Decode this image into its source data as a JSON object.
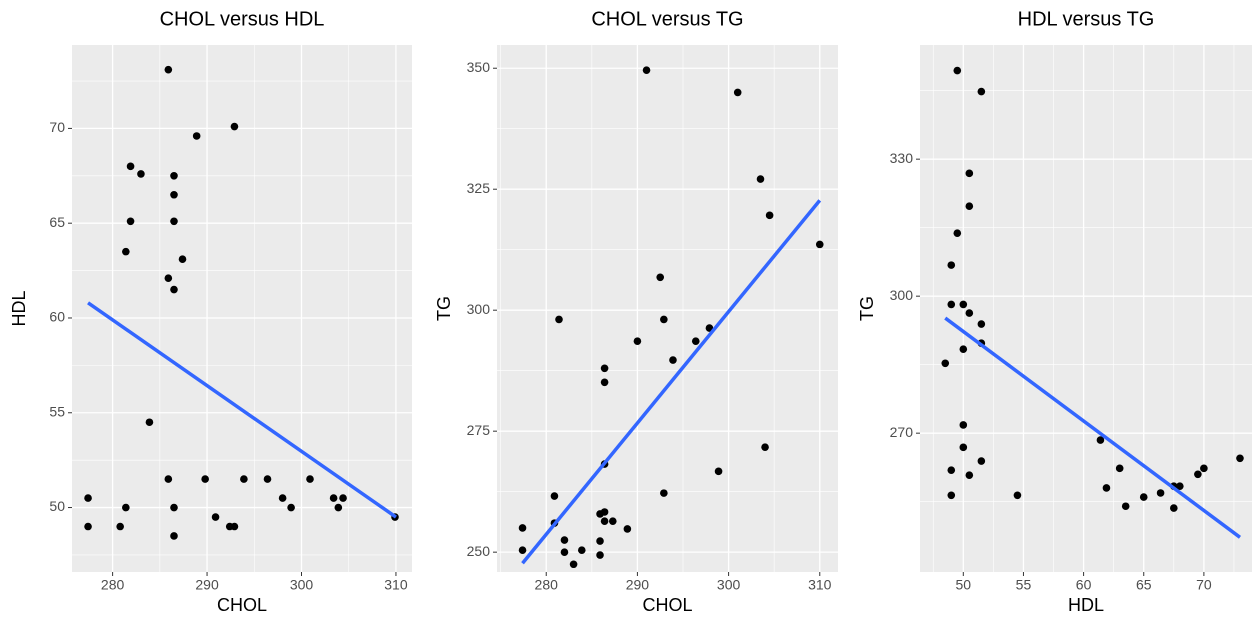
{
  "chart_data": [
    {
      "type": "scatter",
      "title": "CHOL versus HDL",
      "x_label": "CHOL",
      "y_label": "HDL",
      "grid": true,
      "color": "#000000",
      "x": [
        277.4,
        277.4,
        281.4,
        280.8,
        281.9,
        281.9,
        281.4,
        283,
        283.9,
        285.9,
        285.9,
        285.9,
        286.5,
        286.5,
        286.5,
        286.5,
        286.5,
        286.5,
        287.4,
        288.9,
        289.8,
        290.9,
        292.4,
        292.9,
        292.9,
        293.9,
        296.4,
        298,
        298.9,
        300.9,
        303.4,
        303.9,
        304.4,
        309.9
      ],
      "y": [
        49,
        50.5,
        50,
        49,
        68,
        65.1,
        63.5,
        67.6,
        54.5,
        73.1,
        62.1,
        51.5,
        67.5,
        66.5,
        65.1,
        61.5,
        50,
        48.5,
        63.1,
        69.6,
        51.5,
        49.5,
        49,
        49,
        70.1,
        51.5,
        51.5,
        50.5,
        50,
        51.5,
        50.5,
        50,
        50.5,
        49.5
      ],
      "xlim": [
        275.7,
        311.7
      ],
      "ylim": [
        46.6,
        74.4
      ],
      "xticks": [
        280,
        290,
        300,
        310
      ],
      "yticks": [
        50,
        55,
        60,
        65,
        70
      ],
      "fit": {
        "x": [
          277.4,
          310
        ],
        "y": [
          60.8,
          49.5
        ],
        "color": "#3366ff"
      }
    },
    {
      "type": "scatter",
      "title": "CHOL versus TG",
      "x_label": "CHOL",
      "y_label": "TG",
      "grid": true,
      "color": "#000000",
      "x": [
        277.4,
        277.4,
        280.9,
        281.4,
        282,
        282,
        283,
        283.9,
        285.9,
        285.9,
        286.4,
        286.4,
        286.4,
        285.9,
        286.4,
        286.4,
        287.3,
        288.9,
        290,
        291,
        292.5,
        292.9,
        292.9,
        293.9,
        296.4,
        297.9,
        298.9,
        301,
        303.5,
        304,
        304.5,
        310,
        280.9
      ],
      "y": [
        250.4,
        255,
        256,
        298.1,
        252.5,
        250,
        247.5,
        250.4,
        249.4,
        252.3,
        288,
        285.1,
        268.2,
        257.9,
        258.3,
        256.4,
        256.4,
        254.8,
        293.6,
        349.6,
        306.8,
        298.1,
        262.2,
        289.7,
        293.6,
        296.3,
        266.7,
        345,
        327.1,
        271.7,
        319.6,
        313.6,
        261.6
      ],
      "xlim": [
        274.6,
        312
      ],
      "ylim": [
        245.9,
        354.8
      ],
      "xticks": [
        280,
        290,
        300,
        310
      ],
      "yticks": [
        250,
        275,
        300,
        325,
        350
      ],
      "fit": {
        "x": [
          277.4,
          310
        ],
        "y": [
          247.7,
          322.7
        ],
        "color": "#3366ff"
      }
    },
    {
      "type": "scatter",
      "title": "HDL versus TG",
      "x_label": "HDL",
      "y_label": "TG",
      "grid": true,
      "color": "#000000",
      "x": [
        49.5,
        51.5,
        50.5,
        50.5,
        49.5,
        49,
        49,
        50,
        50.5,
        51.5,
        51.5,
        50,
        48.5,
        50,
        50,
        49,
        50.5,
        51.5,
        49,
        54.5,
        61.4,
        61.9,
        63,
        63.5,
        65,
        66.4,
        67.5,
        68,
        67.5,
        69.5,
        70,
        73
      ],
      "y": [
        349.4,
        344.8,
        326.9,
        319.7,
        313.8,
        306.8,
        298.2,
        298.2,
        296.3,
        293.9,
        289.7,
        288.4,
        285.3,
        271.8,
        266.9,
        261.9,
        260.8,
        263.9,
        256.4,
        256.4,
        268.5,
        258,
        262.3,
        254,
        256,
        256.9,
        258.4,
        258.4,
        253.6,
        261,
        262.3,
        264.5
      ],
      "xlim": [
        46.4,
        74
      ],
      "ylim": [
        239.6,
        355
      ],
      "xticks": [
        50,
        55,
        60,
        65,
        70
      ],
      "yticks": [
        270,
        300,
        330
      ],
      "fit": {
        "x": [
          48.5,
          73
        ],
        "y": [
          295.2,
          247.2
        ],
        "color": "#3366ff"
      }
    }
  ]
}
